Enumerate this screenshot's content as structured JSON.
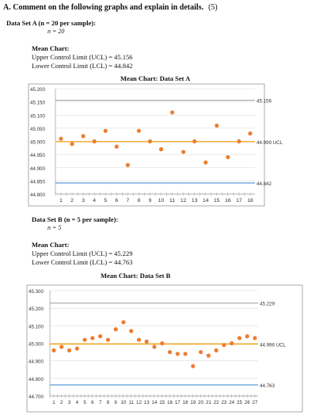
{
  "question": {
    "text": "A. Comment on the following graphs and explain in details.",
    "points": "(5)"
  },
  "set_a": {
    "header": "Data Set A (n = 20 per sample):",
    "n_label": "n = 20",
    "mean_chart_label": "Mean Chart:",
    "ucl_line": "Upper Control Limit (UCL) = 45.156",
    "lcl_line": "Lower Control Limit (LCL) = 44.842",
    "chart_title": "Mean Chart: Data Set A"
  },
  "set_b": {
    "header": "Data Set B (n = 5 per sample):",
    "n_label": "n = 5",
    "mean_chart_label": "Mean Chart:",
    "ucl_line": "Upper Control Limit (UCL) = 45.229",
    "lcl_line": "Lower Control Limit (LCL) = 44.763",
    "chart_title": "Mean Chart: Data Set B"
  },
  "colors": {
    "points": "#ED7D31",
    "center": "#F5A623",
    "lcl": "#5B9BD5",
    "ucl": "#999999",
    "grid": "#D9D9D9"
  },
  "chart_data": [
    {
      "type": "line",
      "title": "Mean Chart: Data Set A",
      "x": [
        1,
        2,
        3,
        4,
        5,
        6,
        7,
        8,
        9,
        10,
        11,
        12,
        13,
        14,
        15,
        16,
        17,
        18
      ],
      "x_tick_labels": [
        "1",
        "2",
        "3",
        "4",
        "5",
        "6",
        "7",
        "8",
        "9",
        "10",
        "11",
        "12",
        "13",
        "14",
        "15",
        "16",
        "17",
        "18"
      ],
      "y_ticks": [
        "45.200",
        "45.150",
        "45.100",
        "45.050",
        "45.000",
        "44.950",
        "44.900",
        "44.850",
        "44.800"
      ],
      "ylim": [
        44.8,
        45.2
      ],
      "values": [
        45.01,
        44.99,
        45.02,
        45.0,
        45.04,
        44.98,
        44.91,
        45.04,
        45.0,
        44.97,
        45.11,
        44.96,
        45.0,
        44.92,
        45.06,
        44.94,
        45.0,
        45.03
      ],
      "ucl": 45.156,
      "center": 44.999,
      "lcl": 44.842,
      "ucl_label": "45.156",
      "center_label": "44.999 UCL",
      "lcl_label": "44.842",
      "grid": true
    },
    {
      "type": "line",
      "title": "Mean Chart: Data Set B",
      "x": [
        1,
        2,
        3,
        4,
        5,
        6,
        7,
        8,
        9,
        10,
        11,
        12,
        13,
        14,
        15,
        16,
        17,
        18,
        19,
        20,
        21,
        22,
        23,
        24,
        25,
        26,
        27
      ],
      "x_tick_labels": [
        "1",
        "2",
        "3",
        "4",
        "5",
        "6",
        "7",
        "8",
        "9",
        "10",
        "11",
        "12",
        "13",
        "14",
        "15",
        "16",
        "17",
        "18",
        "19",
        "20",
        "21",
        "22",
        "23",
        "24",
        "25",
        "26",
        "27"
      ],
      "y_ticks": [
        "45.300",
        "45.200",
        "45.100",
        "45.000",
        "44.900",
        "44.800",
        "44.700"
      ],
      "ylim": [
        44.7,
        45.3
      ],
      "values": [
        44.96,
        44.98,
        44.96,
        44.97,
        45.02,
        45.03,
        45.04,
        45.02,
        45.08,
        45.12,
        45.07,
        45.02,
        45.01,
        44.98,
        45.0,
        44.95,
        44.94,
        44.94,
        44.87,
        44.95,
        44.93,
        44.96,
        44.99,
        45.0,
        45.03,
        45.04,
        45.03
      ],
      "ucl": 45.229,
      "center": 44.996,
      "lcl": 44.763,
      "ucl_label": "45.229",
      "center_label": "44.996 UCL",
      "lcl_label": "44.763",
      "grid": true
    }
  ]
}
